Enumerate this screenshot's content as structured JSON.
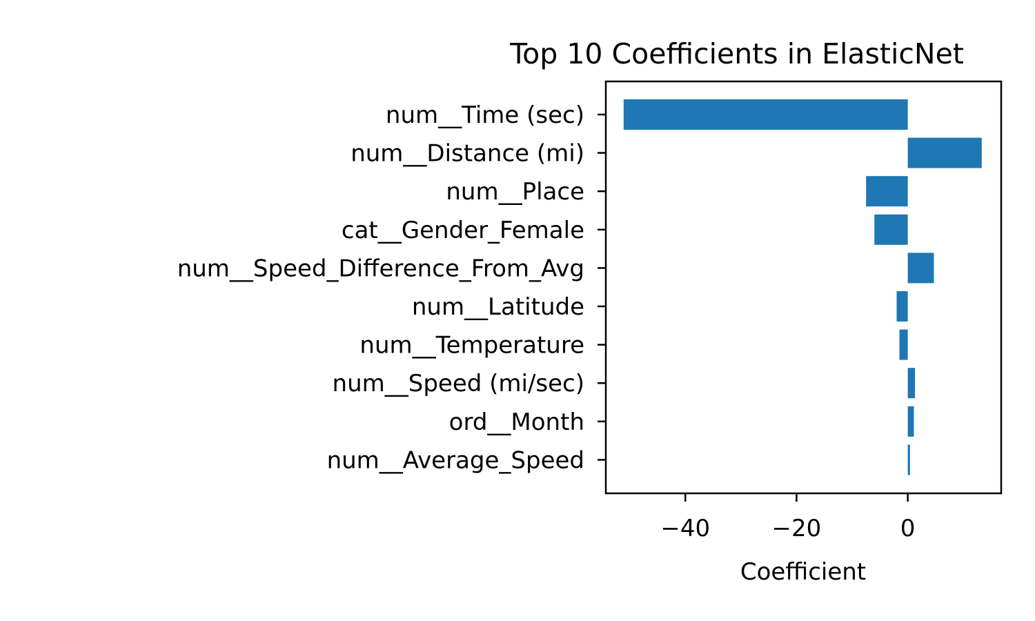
{
  "chart_data": {
    "type": "bar",
    "orientation": "horizontal",
    "title": "Top 10 Coefficients in ElasticNet",
    "xlabel": "Coefficient",
    "ylabel": "",
    "xlim": [
      -54.3,
      16.8
    ],
    "xticks": [
      -40,
      -20,
      0
    ],
    "xtick_labels": [
      "−40",
      "−20",
      "0"
    ],
    "categories": [
      "num__Time (sec)",
      "num__Distance (mi)",
      "num__Place",
      "cat__Gender_Female",
      "num__Speed_Difference_From_Avg",
      "num__Latitude",
      "num__Temperature",
      "num__Speed (mi/sec)",
      "ord__Month",
      "num__Average_Speed"
    ],
    "values": [
      -51.1,
      13.3,
      -7.5,
      -6.0,
      4.7,
      -2.0,
      -1.5,
      1.3,
      1.1,
      0.4
    ],
    "bar_color": "#1f77b4",
    "grid": false,
    "legend": "none"
  }
}
